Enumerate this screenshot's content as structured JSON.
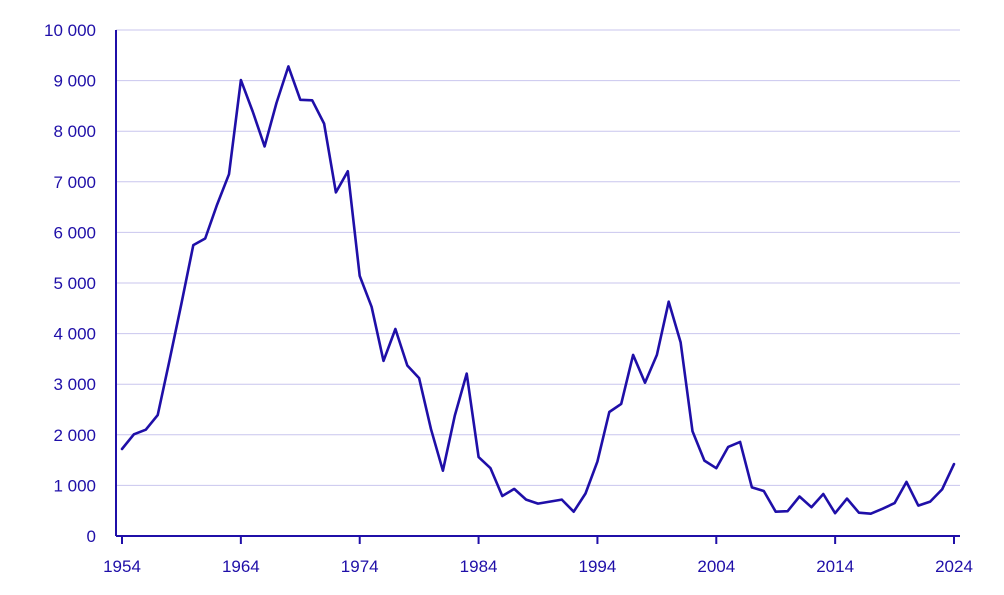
{
  "chart_data": {
    "type": "line",
    "title": "",
    "xlabel": "",
    "ylabel": "",
    "xlim": [
      1954,
      2024
    ],
    "ylim": [
      0,
      10000
    ],
    "grid": true,
    "colors": {
      "series": "#1f0fa8",
      "grid": "#c9c6ee",
      "text": "#1f0fa8"
    },
    "y_ticks": [
      {
        "value": 0,
        "label": "0"
      },
      {
        "value": 1000,
        "label": "1 000"
      },
      {
        "value": 2000,
        "label": "2 000"
      },
      {
        "value": 3000,
        "label": "3 000"
      },
      {
        "value": 4000,
        "label": "4 000"
      },
      {
        "value": 5000,
        "label": "5 000"
      },
      {
        "value": 6000,
        "label": "6 000"
      },
      {
        "value": 7000,
        "label": "7 000"
      },
      {
        "value": 8000,
        "label": "8 000"
      },
      {
        "value": 9000,
        "label": "9 000"
      },
      {
        "value": 10000,
        "label": "10 000"
      }
    ],
    "x_ticks": [
      {
        "value": 1954,
        "label": "1954"
      },
      {
        "value": 1964,
        "label": "1964"
      },
      {
        "value": 1974,
        "label": "1974"
      },
      {
        "value": 1984,
        "label": "1984"
      },
      {
        "value": 1994,
        "label": "1994"
      },
      {
        "value": 2004,
        "label": "2004"
      },
      {
        "value": 2014,
        "label": "2014"
      },
      {
        "value": 2024,
        "label": "2024"
      }
    ],
    "series": [
      {
        "x": [
          1954,
          1955,
          1956,
          1957,
          1958,
          1959,
          1960,
          1961,
          1962,
          1963,
          1964,
          1965,
          1966,
          1967,
          1968,
          1969,
          1970,
          1971,
          1972,
          1973,
          1974,
          1975,
          1976,
          1977,
          1978,
          1979,
          1980,
          1981,
          1982,
          1983,
          1984,
          1985,
          1986,
          1987,
          1988,
          1989,
          1990,
          1991,
          1992,
          1993,
          1994,
          1995,
          1996,
          1997,
          1998,
          1999,
          2000,
          2001,
          2002,
          2003,
          2004,
          2005,
          2006,
          2007,
          2008,
          2009,
          2010,
          2011,
          2012,
          2013,
          2014,
          2015,
          2016,
          2017,
          2018,
          2019,
          2020,
          2021,
          2022,
          2023,
          2024
        ],
        "values": [
          1720,
          2010,
          2100,
          2390,
          3470,
          4590,
          5750,
          5880,
          6550,
          7150,
          9010,
          8390,
          7700,
          8560,
          9280,
          8620,
          8610,
          8150,
          6790,
          7210,
          5140,
          4530,
          3460,
          4090,
          3370,
          3120,
          2110,
          1290,
          2380,
          3210,
          1560,
          1340,
          790,
          930,
          720,
          640,
          680,
          720,
          480,
          840,
          1470,
          2450,
          2610,
          3580,
          3030,
          3580,
          4630,
          3830,
          2070,
          1490,
          1340,
          1760,
          1860,
          960,
          890,
          480,
          490,
          780,
          570,
          830,
          450,
          740,
          460,
          440,
          540,
          650,
          1070,
          600,
          680,
          920,
          1420
        ]
      }
    ]
  }
}
